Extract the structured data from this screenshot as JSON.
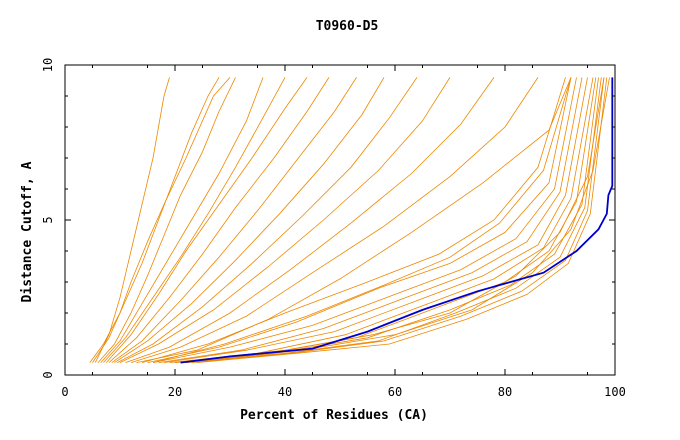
{
  "chart_data": {
    "type": "line",
    "title": "T0960-D5",
    "xlabel": "Percent of Residues (CA)",
    "ylabel": "Distance Cutoff, A",
    "xlim": [
      0,
      100
    ],
    "ylim": [
      0,
      10
    ],
    "xticks": [
      0,
      20,
      40,
      60,
      80,
      100
    ],
    "yticks": [
      0,
      5,
      10
    ],
    "grid": false,
    "colors": {
      "highlight": "#0000cc",
      "others": "#ee8800",
      "axis": "#000000"
    },
    "highlight_series": {
      "name": "T0960-D5",
      "x": [
        21,
        30,
        45,
        55,
        65,
        75,
        87,
        93,
        97,
        98.5,
        98.8,
        99.5,
        99.5
      ],
      "y": [
        0.4,
        0.6,
        0.85,
        1.4,
        2.1,
        2.7,
        3.3,
        4.0,
        4.7,
        5.2,
        5.8,
        6.1,
        9.6
      ]
    },
    "other_series": [
      {
        "x": [
          4.5,
          7,
          10,
          12,
          15,
          18,
          22,
          25,
          27,
          30
        ],
        "y": [
          0.4,
          1.0,
          2.0,
          3.0,
          4.3,
          5.5,
          7.0,
          8.2,
          9.0,
          9.6
        ]
      },
      {
        "x": [
          5,
          8,
          11,
          14,
          17,
          20,
          23,
          26,
          28
        ],
        "y": [
          0.4,
          1.2,
          2.4,
          3.6,
          5.0,
          6.4,
          7.8,
          9.0,
          9.6
        ]
      },
      {
        "x": [
          5.5,
          8,
          10,
          12,
          14,
          16,
          17,
          18,
          19
        ],
        "y": [
          0.4,
          1.3,
          2.5,
          4.0,
          5.5,
          7.0,
          8.0,
          9.0,
          9.6
        ]
      },
      {
        "x": [
          6,
          9,
          12,
          15,
          18,
          21,
          25,
          28,
          31
        ],
        "y": [
          0.4,
          1.0,
          2.0,
          3.2,
          4.5,
          5.8,
          7.2,
          8.5,
          9.6
        ]
      },
      {
        "x": [
          6.5,
          10,
          14,
          18,
          23,
          28,
          33,
          36
        ],
        "y": [
          0.4,
          1.1,
          2.3,
          3.5,
          5.0,
          6.5,
          8.2,
          9.6
        ]
      },
      {
        "x": [
          7,
          11,
          16,
          21,
          26,
          31,
          36,
          40
        ],
        "y": [
          0.4,
          1.2,
          2.5,
          3.8,
          5.2,
          6.7,
          8.3,
          9.6
        ]
      },
      {
        "x": [
          7.5,
          12,
          17,
          22,
          28,
          34,
          40,
          44
        ],
        "y": [
          0.4,
          1.3,
          2.6,
          4.0,
          5.5,
          7.0,
          8.6,
          9.6
        ]
      },
      {
        "x": [
          8,
          13,
          19,
          25,
          31,
          38,
          44,
          48
        ],
        "y": [
          0.4,
          1.2,
          2.5,
          3.9,
          5.4,
          7.0,
          8.5,
          9.6
        ]
      },
      {
        "x": [
          8.5,
          14,
          21,
          28,
          35,
          42,
          49,
          53
        ],
        "y": [
          0.4,
          1.1,
          2.4,
          3.8,
          5.3,
          6.9,
          8.5,
          9.6
        ]
      },
      {
        "x": [
          9,
          15,
          23,
          31,
          39,
          47,
          54,
          58
        ],
        "y": [
          0.4,
          1.1,
          2.3,
          3.7,
          5.2,
          6.8,
          8.4,
          9.6
        ]
      },
      {
        "x": [
          9.5,
          16,
          25,
          34,
          43,
          52,
          59,
          64
        ],
        "y": [
          0.4,
          1.0,
          2.2,
          3.6,
          5.1,
          6.7,
          8.3,
          9.6
        ]
      },
      {
        "x": [
          10,
          17,
          27,
          37,
          47,
          57,
          65,
          70
        ],
        "y": [
          0.4,
          1.0,
          2.1,
          3.5,
          5.0,
          6.6,
          8.2,
          9.6
        ]
      },
      {
        "x": [
          11,
          19,
          30,
          41,
          52,
          63,
          72,
          78
        ],
        "y": [
          0.4,
          0.9,
          2.0,
          3.4,
          4.9,
          6.5,
          8.1,
          9.6
        ]
      },
      {
        "x": [
          12,
          21,
          33,
          45,
          58,
          70,
          80,
          86
        ],
        "y": [
          0.4,
          0.9,
          1.9,
          3.3,
          4.8,
          6.4,
          8.0,
          9.6
        ]
      },
      {
        "x": [
          13,
          24,
          37,
          50,
          63,
          76,
          88,
          92
        ],
        "y": [
          0.4,
          0.8,
          1.8,
          3.1,
          4.6,
          6.2,
          7.9,
          9.6
        ]
      },
      {
        "x": [
          15,
          28,
          42,
          57,
          70,
          80,
          88,
          92
        ],
        "y": [
          0.4,
          0.9,
          1.7,
          2.8,
          3.6,
          4.6,
          6.2,
          9.6
        ]
      },
      {
        "x": [
          16,
          30,
          45,
          60,
          72,
          82,
          89,
          93
        ],
        "y": [
          0.4,
          0.9,
          1.6,
          2.6,
          3.4,
          4.4,
          6.0,
          9.6
        ]
      },
      {
        "x": [
          17,
          32,
          47,
          62,
          74,
          84,
          90,
          94
        ],
        "y": [
          0.4,
          0.8,
          1.5,
          2.5,
          3.3,
          4.3,
          5.9,
          9.6
        ]
      },
      {
        "x": [
          18,
          33,
          49,
          64,
          76,
          86,
          91,
          95
        ],
        "y": [
          0.4,
          0.8,
          1.4,
          2.4,
          3.2,
          4.2,
          5.8,
          9.6
        ]
      },
      {
        "x": [
          19,
          35,
          51,
          66,
          78,
          87,
          92,
          96
        ],
        "y": [
          0.4,
          0.7,
          1.3,
          2.3,
          3.1,
          4.1,
          5.7,
          9.6
        ]
      },
      {
        "x": [
          20,
          37,
          53,
          68,
          80,
          88,
          93,
          96.5
        ],
        "y": [
          0.4,
          0.7,
          1.2,
          2.2,
          3.0,
          4.0,
          5.6,
          9.6
        ]
      },
      {
        "x": [
          21,
          38,
          55,
          70,
          81,
          89,
          94,
          97
        ],
        "y": [
          0.4,
          0.7,
          1.2,
          2.1,
          2.9,
          3.9,
          5.5,
          9.6
        ]
      },
      {
        "x": [
          22,
          40,
          57,
          71,
          82,
          90,
          94.5,
          97.5
        ],
        "y": [
          0.4,
          0.7,
          1.1,
          2.0,
          2.8,
          3.8,
          5.4,
          9.6
        ]
      },
      {
        "x": [
          23,
          41,
          58,
          72,
          83,
          91,
          95,
          98
        ],
        "y": [
          0.4,
          0.7,
          1.1,
          1.9,
          2.7,
          3.7,
          5.3,
          9.6
        ]
      },
      {
        "x": [
          24,
          42,
          59,
          73,
          84,
          91.5,
          95.5,
          98.5
        ],
        "y": [
          0.4,
          0.7,
          1.0,
          1.8,
          2.6,
          3.6,
          5.2,
          9.6
        ]
      },
      {
        "x": [
          20,
          40,
          56,
          70,
          82,
          90,
          95,
          98
        ],
        "y": [
          0.4,
          0.8,
          1.3,
          2.0,
          3.2,
          4.6,
          6.4,
          9.6
        ]
      },
      {
        "x": [
          22,
          43,
          60,
          74,
          85,
          92,
          96,
          99
        ],
        "y": [
          0.4,
          0.8,
          1.3,
          2.1,
          3.3,
          4.7,
          6.6,
          9.6
        ]
      },
      {
        "x": [
          14,
          26,
          40,
          55,
          68,
          78,
          86,
          91
        ],
        "y": [
          0.4,
          1.0,
          2.0,
          3.0,
          3.9,
          5.0,
          6.7,
          9.6
        ]
      },
      {
        "x": [
          16,
          29,
          44,
          58,
          70,
          79,
          87,
          92
        ],
        "y": [
          0.4,
          1.0,
          1.9,
          2.9,
          3.8,
          4.9,
          6.6,
          9.6
        ]
      }
    ]
  }
}
